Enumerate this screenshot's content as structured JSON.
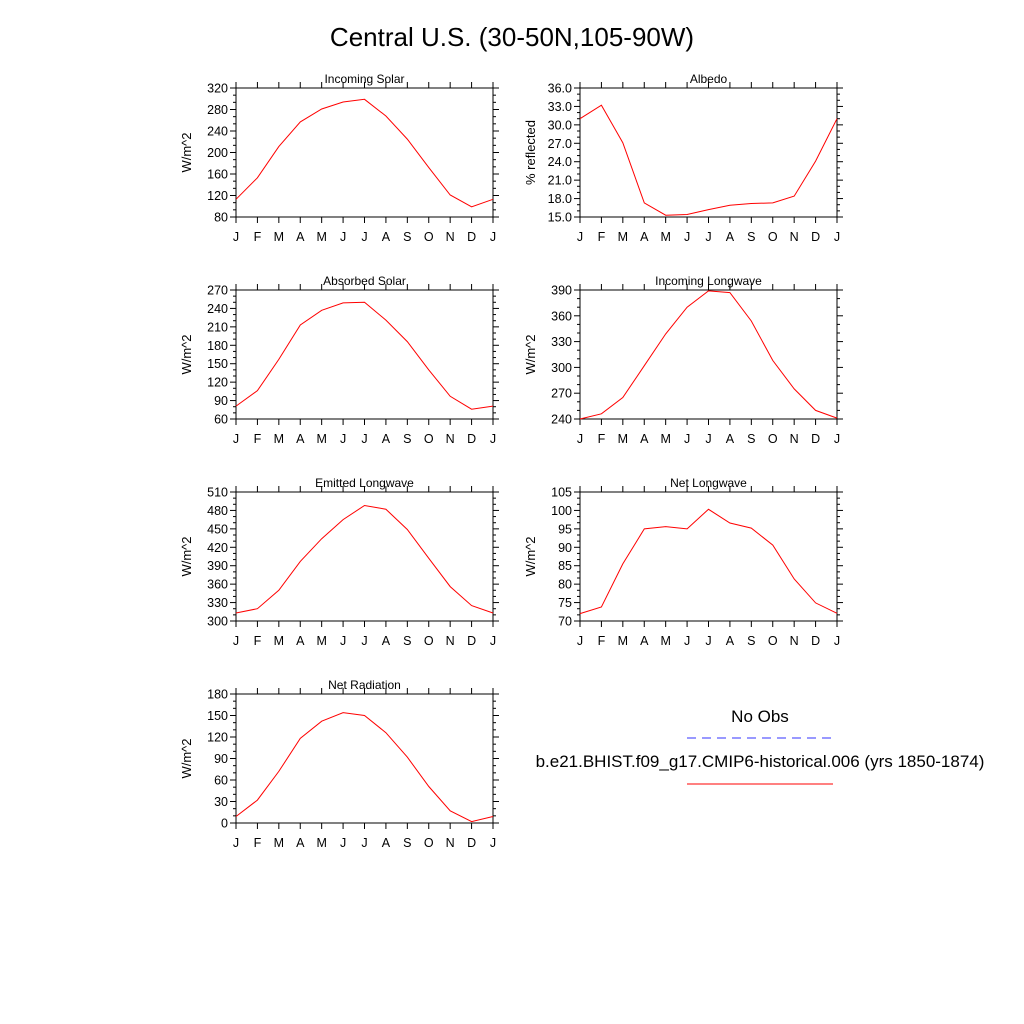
{
  "title": "Central U.S. (30-50N,105-90W)",
  "legend": {
    "obs_label": "No Obs",
    "obs_color": "#3333ff",
    "model_label": "b.e21.BHIST.f09_g17.CMIP6-historical.006 (yrs 1850-1874)",
    "model_color": "#ff0000"
  },
  "chart_data": [
    {
      "type": "line",
      "title": "Incoming Solar",
      "ylabel": "W/m^2",
      "x": [
        "J",
        "F",
        "M",
        "A",
        "M",
        "J",
        "J",
        "A",
        "S",
        "O",
        "N",
        "D",
        "J"
      ],
      "ylim": [
        80,
        320
      ],
      "yticks": [
        "80",
        "120",
        "160",
        "200",
        "240",
        "280",
        "320"
      ],
      "series": [
        {
          "name": "b.e21.BHIST.f09_g17.CMIP6-historical.006 (yrs 1850-1874)",
          "color": "#ff0000",
          "values": [
            113,
            153,
            211,
            257,
            281,
            294,
            299,
            268,
            225,
            172,
            121,
            99,
            113
          ]
        }
      ]
    },
    {
      "type": "line",
      "title": "Albedo",
      "ylabel": "% reflected",
      "x": [
        "J",
        "F",
        "M",
        "A",
        "M",
        "J",
        "J",
        "A",
        "S",
        "O",
        "N",
        "D",
        "J"
      ],
      "ylim": [
        15.0,
        36.0
      ],
      "yticks": [
        "15.0",
        "18.0",
        "21.0",
        "24.0",
        "27.0",
        "30.0",
        "33.0",
        "36.0"
      ],
      "series": [
        {
          "name": "b.e21.BHIST.f09_g17.CMIP6-historical.006 (yrs 1850-1874)",
          "color": "#ff0000",
          "values": [
            31.0,
            33.2,
            27.1,
            17.3,
            15.3,
            15.4,
            16.2,
            16.9,
            17.2,
            17.3,
            18.4,
            24.1,
            31.0
          ]
        }
      ]
    },
    {
      "type": "line",
      "title": "Absorbed Solar",
      "ylabel": "W/m^2",
      "x": [
        "J",
        "F",
        "M",
        "A",
        "M",
        "J",
        "J",
        "A",
        "S",
        "O",
        "N",
        "D",
        "J"
      ],
      "ylim": [
        60,
        270
      ],
      "yticks": [
        "60",
        "90",
        "120",
        "150",
        "180",
        "210",
        "240",
        "270"
      ],
      "series": [
        {
          "name": "b.e21.BHIST.f09_g17.CMIP6-historical.006 (yrs 1850-1874)",
          "color": "#ff0000",
          "values": [
            81,
            106,
            157,
            213,
            237,
            249,
            250,
            221,
            186,
            140,
            97,
            76,
            81
          ]
        }
      ]
    },
    {
      "type": "line",
      "title": "Incoming Longwave",
      "ylabel": "W/m^2",
      "x": [
        "J",
        "F",
        "M",
        "A",
        "M",
        "J",
        "J",
        "A",
        "S",
        "O",
        "N",
        "D",
        "J"
      ],
      "ylim": [
        240,
        390
      ],
      "yticks": [
        "240",
        "270",
        "300",
        "330",
        "360",
        "390"
      ],
      "series": [
        {
          "name": "b.e21.BHIST.f09_g17.CMIP6-historical.006 (yrs 1850-1874)",
          "color": "#ff0000",
          "values": [
            240,
            246,
            265,
            302,
            339,
            370,
            389,
            387,
            354,
            308,
            275,
            250,
            241
          ]
        }
      ]
    },
    {
      "type": "line",
      "title": "Emitted Longwave",
      "ylabel": "W/m^2",
      "x": [
        "J",
        "F",
        "M",
        "A",
        "M",
        "J",
        "J",
        "A",
        "S",
        "O",
        "N",
        "D",
        "J"
      ],
      "ylim": [
        300,
        510
      ],
      "yticks": [
        "300",
        "330",
        "360",
        "390",
        "420",
        "450",
        "480",
        "510"
      ],
      "series": [
        {
          "name": "b.e21.BHIST.f09_g17.CMIP6-historical.006 (yrs 1850-1874)",
          "color": "#ff0000",
          "values": [
            313,
            320,
            350,
            397,
            434,
            465,
            488,
            482,
            449,
            402,
            356,
            325,
            313
          ]
        }
      ]
    },
    {
      "type": "line",
      "title": "Net Longwave",
      "ylabel": "W/m^2",
      "x": [
        "J",
        "F",
        "M",
        "A",
        "M",
        "J",
        "J",
        "A",
        "S",
        "O",
        "N",
        "D",
        "J"
      ],
      "ylim": [
        70,
        105
      ],
      "yticks": [
        "70",
        "75",
        "80",
        "85",
        "90",
        "95",
        "100",
        "105"
      ],
      "series": [
        {
          "name": "b.e21.BHIST.f09_g17.CMIP6-historical.006 (yrs 1850-1874)",
          "color": "#ff0000",
          "values": [
            72.0,
            73.8,
            85.5,
            95.0,
            95.6,
            95.0,
            100.3,
            96.6,
            95.2,
            90.6,
            81.4,
            74.9,
            72.1
          ]
        }
      ]
    },
    {
      "type": "line",
      "title": "Net Radiation",
      "ylabel": "W/m^2",
      "x": [
        "J",
        "F",
        "M",
        "A",
        "M",
        "J",
        "J",
        "A",
        "S",
        "O",
        "N",
        "D",
        "J"
      ],
      "ylim": [
        0,
        180
      ],
      "yticks": [
        "0",
        "30",
        "60",
        "90",
        "120",
        "150",
        "180"
      ],
      "series": [
        {
          "name": "b.e21.BHIST.f09_g17.CMIP6-historical.006 (yrs 1850-1874)",
          "color": "#ff0000",
          "values": [
            9,
            32,
            72,
            118,
            142,
            154,
            150,
            126,
            92,
            51,
            17,
            2,
            9
          ]
        }
      ]
    }
  ]
}
